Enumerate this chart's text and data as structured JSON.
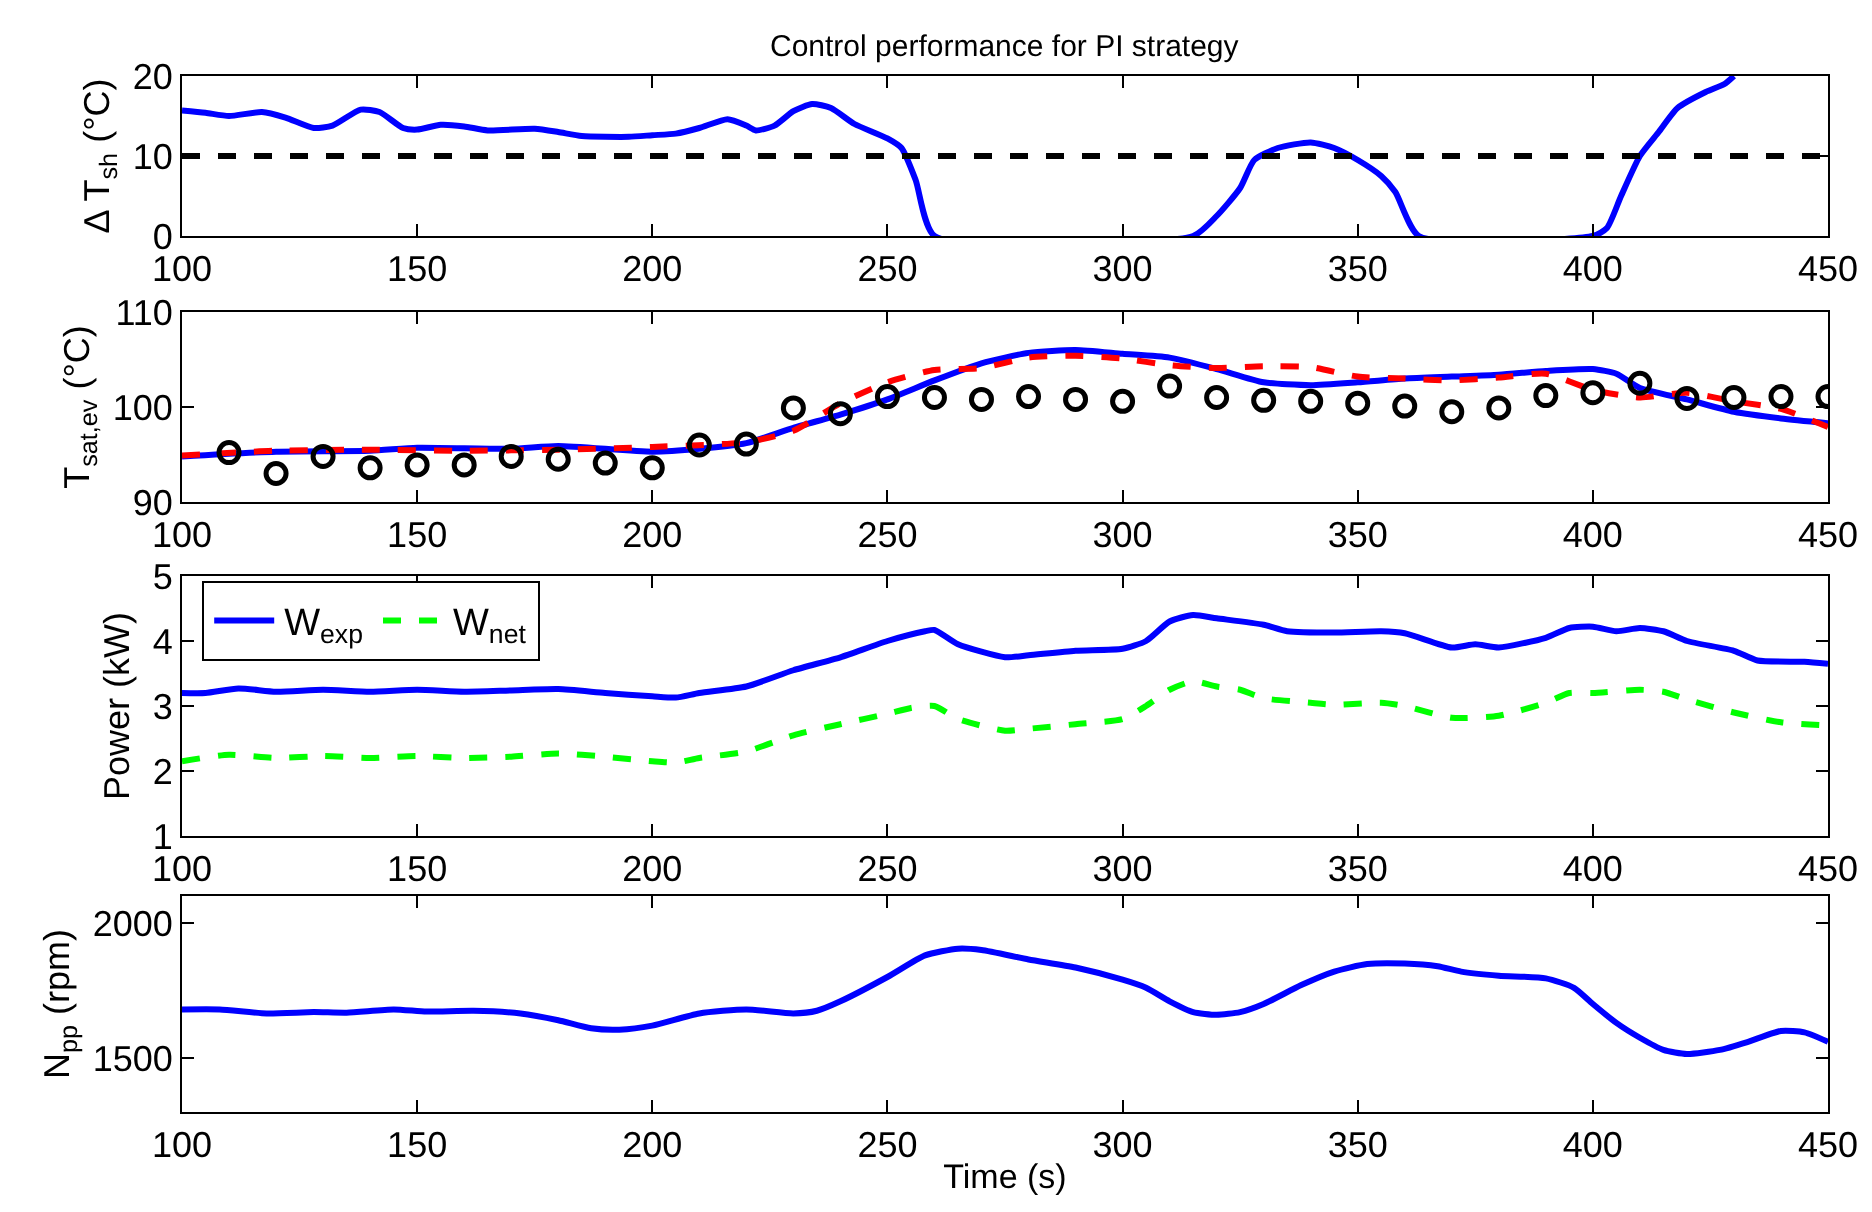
{
  "chart_data": [
    {
      "type": "line",
      "title": "Control performance for PI strategy",
      "ylabel": "Δ T$_{sh}$ (°C)",
      "xlim": [
        100,
        450
      ],
      "xticks": [
        100,
        150,
        200,
        250,
        300,
        350,
        400,
        450
      ],
      "ylim": [
        0,
        20
      ],
      "yticks": [
        0,
        10,
        20
      ],
      "legend": false,
      "series": [
        {
          "color": "#0000ff",
          "line_style": "solid",
          "x": [
            100,
            105,
            110,
            117,
            122,
            128,
            132,
            138,
            142,
            147,
            150,
            155,
            160,
            165,
            175,
            180,
            185,
            195,
            200,
            205,
            210,
            216,
            220,
            222,
            226,
            230,
            234,
            238,
            243,
            250,
            253,
            256,
            260,
            315,
            320,
            325,
            328,
            333,
            340,
            345,
            350,
            355,
            358,
            363,
            400,
            403,
            406,
            410,
            414,
            418,
            424,
            428,
            430
          ],
          "values": [
            15.7,
            15.4,
            15.0,
            15.5,
            14.8,
            13.5,
            13.8,
            15.8,
            15.5,
            13.5,
            13.3,
            13.9,
            13.7,
            13.2,
            13.4,
            13.0,
            12.5,
            12.4,
            12.6,
            12.8,
            13.5,
            14.6,
            13.8,
            13.2,
            13.8,
            15.6,
            16.5,
            16.0,
            14.0,
            12.2,
            11.0,
            7,
            0,
            0,
            2.5,
            6,
            9.5,
            11,
            11.7,
            11,
            9.5,
            7.5,
            5.5,
            0,
            0,
            1,
            5,
            10,
            13,
            16,
            18,
            19,
            20
          ]
        }
      ],
      "ref_lines": [
        {
          "axis": "y",
          "value": 10,
          "color": "#000000",
          "line_style": "dashed"
        }
      ]
    },
    {
      "type": "line",
      "ylabel": "T$_{sat,ev}$ (°C)",
      "xlim": [
        100,
        450
      ],
      "xticks": [
        100,
        150,
        200,
        250,
        300,
        350,
        400,
        450
      ],
      "ylim": [
        90,
        110
      ],
      "yticks": [
        90,
        100,
        110
      ],
      "legend": false,
      "series": [
        {
          "color": "#0000ff",
          "line_style": "solid",
          "x": [
            100,
            120,
            140,
            150,
            170,
            180,
            200,
            210,
            220,
            230,
            240,
            250,
            260,
            270,
            280,
            290,
            300,
            310,
            320,
            330,
            340,
            350,
            360,
            370,
            380,
            390,
            400,
            405,
            410,
            420,
            430,
            440,
            450
          ],
          "values": [
            94.8,
            95.3,
            95.4,
            95.7,
            95.6,
            95.9,
            95.3,
            95.6,
            96.2,
            97.8,
            99.2,
            100.8,
            102.8,
            104.6,
            105.7,
            106.0,
            105.6,
            105.2,
            104.0,
            102.6,
            102.3,
            102.6,
            103.0,
            103.2,
            103.4,
            103.8,
            104.0,
            103.5,
            102.0,
            100.8,
            99.5,
            98.8,
            98.3
          ]
        },
        {
          "color": "#ff0000",
          "line_style": "dashed",
          "x": [
            100,
            120,
            140,
            160,
            180,
            200,
            220,
            230,
            240,
            250,
            260,
            270,
            280,
            290,
            300,
            310,
            320,
            330,
            340,
            350,
            360,
            370,
            380,
            390,
            400,
            410,
            420,
            430,
            440,
            450
          ],
          "values": [
            94.9,
            95.4,
            95.5,
            95.4,
            95.5,
            95.8,
            96.3,
            97.5,
            100.4,
            102.6,
            103.9,
            104.1,
            105.2,
            105.4,
            105.1,
            104.4,
            104.1,
            104.3,
            104.2,
            103.2,
            103.0,
            102.8,
            103.1,
            103.5,
            101.8,
            101.0,
            101.5,
            100.6,
            99.8,
            97.9
          ]
        },
        {
          "type": "scatter",
          "marker": "circle",
          "color": "#000000",
          "x": [
            110,
            120,
            130,
            140,
            150,
            160,
            170,
            180,
            190,
            200,
            210,
            220,
            230,
            240,
            250,
            260,
            270,
            280,
            290,
            300,
            310,
            320,
            330,
            340,
            350,
            360,
            370,
            380,
            390,
            400,
            410,
            420,
            430,
            440,
            450
          ],
          "values": [
            95.2,
            93.0,
            94.8,
            93.6,
            93.9,
            93.9,
            94.8,
            94.5,
            94.1,
            93.6,
            96.0,
            96.1,
            99.9,
            99.3,
            101.1,
            101.0,
            100.8,
            101.1,
            100.8,
            100.6,
            102.2,
            101.0,
            100.7,
            100.6,
            100.4,
            100.1,
            99.5,
            99.9,
            101.2,
            101.5,
            102.5,
            100.9,
            101.0,
            101.1,
            101.1
          ]
        }
      ]
    },
    {
      "type": "line",
      "ylabel": "Power (kW)",
      "xlim": [
        100,
        450
      ],
      "xticks": [
        100,
        150,
        200,
        250,
        300,
        350,
        400,
        450
      ],
      "ylim": [
        1,
        5
      ],
      "yticks": [
        1,
        2,
        3,
        4,
        5
      ],
      "legend": "top left",
      "series": [
        {
          "name": "W$_{exp}$",
          "color": "#0000ff",
          "line_style": "solid",
          "x": [
            100,
            105,
            112,
            120,
            130,
            140,
            150,
            160,
            170,
            180,
            190,
            200,
            205,
            210,
            220,
            230,
            240,
            250,
            258,
            260,
            265,
            275,
            280,
            290,
            300,
            305,
            310,
            315,
            320,
            330,
            335,
            345,
            355,
            360,
            370,
            375,
            380,
            390,
            395,
            400,
            405,
            410,
            415,
            420,
            430,
            435,
            445,
            450
          ],
          "values": [
            3.2,
            3.2,
            3.27,
            3.22,
            3.25,
            3.22,
            3.25,
            3.22,
            3.24,
            3.26,
            3.2,
            3.15,
            3.13,
            3.2,
            3.3,
            3.55,
            3.75,
            4.0,
            4.15,
            4.17,
            3.95,
            3.75,
            3.78,
            3.85,
            3.88,
            4.0,
            4.3,
            4.4,
            4.35,
            4.25,
            4.15,
            4.13,
            4.15,
            4.12,
            3.9,
            3.95,
            3.9,
            4.05,
            4.2,
            4.22,
            4.15,
            4.2,
            4.15,
            4.0,
            3.85,
            3.7,
            3.68,
            3.65
          ]
        },
        {
          "name": "W$_{net}$",
          "color": "#00ff00",
          "line_style": "dashed",
          "x": [
            100,
            110,
            120,
            130,
            140,
            150,
            160,
            170,
            180,
            190,
            200,
            205,
            210,
            220,
            230,
            240,
            250,
            255,
            260,
            265,
            275,
            280,
            290,
            300,
            305,
            310,
            315,
            320,
            325,
            330,
            340,
            345,
            355,
            360,
            370,
            380,
            390,
            395,
            400,
            410,
            415,
            420,
            430,
            440,
            450
          ],
          "values": [
            2.15,
            2.25,
            2.2,
            2.23,
            2.2,
            2.23,
            2.2,
            2.22,
            2.27,
            2.22,
            2.15,
            2.13,
            2.2,
            2.3,
            2.55,
            2.72,
            2.88,
            2.97,
            3.0,
            2.8,
            2.62,
            2.65,
            2.72,
            2.8,
            3.0,
            3.25,
            3.38,
            3.3,
            3.25,
            3.12,
            3.05,
            3.02,
            3.05,
            3.0,
            2.82,
            2.85,
            3.05,
            3.2,
            3.2,
            3.25,
            3.22,
            3.1,
            2.9,
            2.75,
            2.7
          ]
        }
      ]
    },
    {
      "type": "line",
      "ylabel": "N$_{pp}$ (rpm)",
      "xlabel": "Time (s)",
      "xlim": [
        100,
        450
      ],
      "xticks": [
        100,
        150,
        200,
        250,
        300,
        350,
        400,
        450
      ],
      "ylim": [
        1300,
        2100
      ],
      "yticks": [
        1500,
        2000
      ],
      "legend": false,
      "series": [
        {
          "color": "#0000ff",
          "line_style": "solid",
          "x": [
            100,
            108,
            118,
            128,
            135,
            145,
            152,
            162,
            172,
            180,
            187,
            193,
            200,
            210,
            220,
            230,
            235,
            240,
            250,
            258,
            265,
            270,
            280,
            290,
            300,
            305,
            310,
            315,
            320,
            325,
            330,
            338,
            345,
            352,
            360,
            367,
            372,
            380,
            390,
            396,
            400,
            405,
            410,
            415,
            420,
            427,
            433,
            440,
            445,
            450
          ],
          "values": [
            1680,
            1680,
            1665,
            1670,
            1668,
            1680,
            1672,
            1675,
            1665,
            1640,
            1610,
            1605,
            1620,
            1665,
            1680,
            1665,
            1675,
            1710,
            1800,
            1880,
            1905,
            1900,
            1865,
            1835,
            1790,
            1760,
            1710,
            1670,
            1660,
            1670,
            1700,
            1770,
            1820,
            1848,
            1850,
            1840,
            1820,
            1805,
            1795,
            1760,
            1700,
            1630,
            1575,
            1530,
            1515,
            1530,
            1560,
            1600,
            1595,
            1560
          ]
        }
      ]
    }
  ]
}
